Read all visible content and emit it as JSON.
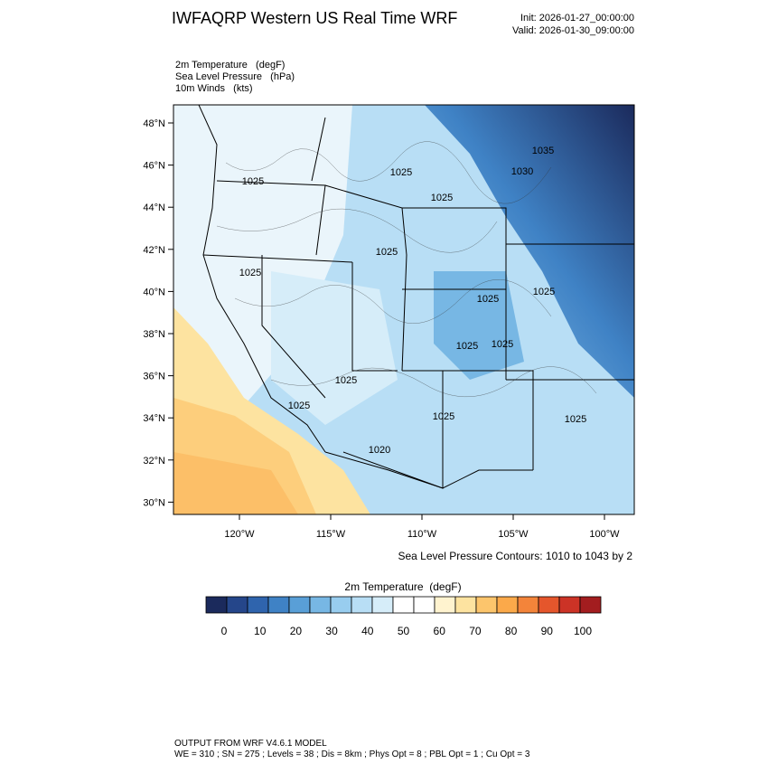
{
  "header": {
    "title": "IWFAQRP Western US Real Time WRF",
    "init": "Init: 2026-01-27_00:00:00",
    "valid": "Valid: 2026-01-30_09:00:00"
  },
  "fields": [
    "2m Temperature   (degF)",
    "Sea Level Pressure   (hPa)",
    "10m Winds   (kts)"
  ],
  "map": {
    "lat_labels": [
      "48°N",
      "46°N",
      "44°N",
      "42°N",
      "40°N",
      "38°N",
      "36°N",
      "34°N",
      "32°N",
      "30°N"
    ],
    "lon_labels": [
      "120°W",
      "115°W",
      "110°W",
      "105°W",
      "100°W"
    ],
    "contour_labels": [
      "1025",
      "1025",
      "1025",
      "1030",
      "1035",
      "1025",
      "1025",
      "1025",
      "1025",
      "1025",
      "1025",
      "1025",
      "1025",
      "1025",
      "1025",
      "1020"
    ],
    "contour_note": "Sea Level Pressure Contours: 1010 to 1043 by 2"
  },
  "colorbar": {
    "title": "2m Temperature  (degF)",
    "ticks": [
      0,
      10,
      20,
      30,
      40,
      50,
      60,
      70,
      80,
      90,
      100
    ],
    "colors": [
      "#1b2a5c",
      "#25468a",
      "#2f64ad",
      "#3f82c5",
      "#599fd7",
      "#77b7e4",
      "#98cdef",
      "#b8def5",
      "#d6edf9",
      "#ffffff",
      "#ffffff",
      "#fff3cf",
      "#fde3a0",
      "#fcc56c",
      "#fba94a",
      "#f3843a",
      "#e5562c",
      "#cc3326",
      "#a31d1f"
    ]
  },
  "footer": [
    "OUTPUT FROM WRF V4.6.1 MODEL",
    "WE = 310 ; SN = 275 ; Levels = 38 ; Dis = 8km ; Phys Opt = 8 ; PBL Opt = 1 ; Cu Opt = 3"
  ]
}
